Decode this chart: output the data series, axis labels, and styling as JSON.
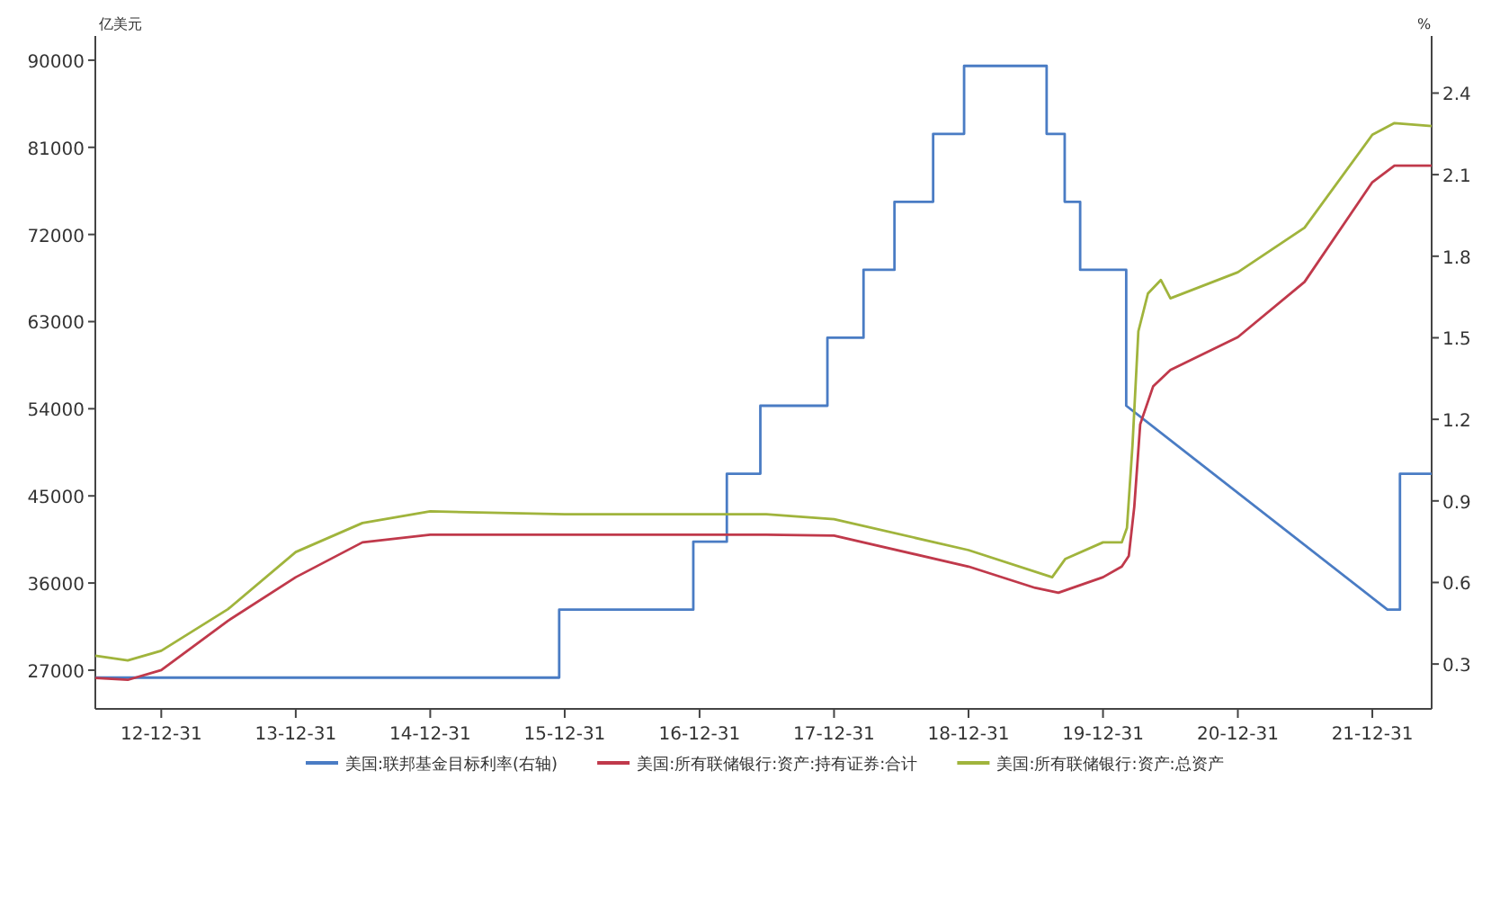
{
  "chart_data": {
    "type": "line",
    "ylabel": "亿美元",
    "y2label": "%",
    "legend": "bottom",
    "xlim": [
      "2012-07-05",
      "2022-06-10"
    ],
    "xticks": [
      {
        "value": "2012-12-31",
        "label": "12-12-31"
      },
      {
        "value": "2013-12-31",
        "label": "13-12-31"
      },
      {
        "value": "2014-12-31",
        "label": "14-12-31"
      },
      {
        "value": "2015-12-31",
        "label": "15-12-31"
      },
      {
        "value": "2016-12-31",
        "label": "16-12-31"
      },
      {
        "value": "2017-12-31",
        "label": "17-12-31"
      },
      {
        "value": "2018-12-31",
        "label": "18-12-31"
      },
      {
        "value": "2019-12-31",
        "label": "19-12-31"
      },
      {
        "value": "2020-12-31",
        "label": "20-12-31"
      },
      {
        "value": "2021-12-31",
        "label": "21-12-31"
      }
    ],
    "ylim": [
      23000,
      92500
    ],
    "yticks": [
      27000,
      36000,
      45000,
      54000,
      63000,
      72000,
      81000,
      90000
    ],
    "y2lim": [
      0.135,
      2.61
    ],
    "y2ticks": [
      0.3,
      0.6,
      0.9,
      1.2,
      1.5,
      1.8,
      2.1,
      2.4
    ],
    "series": [
      {
        "name": "美国:联邦基金目标利率(右轴)",
        "color": "#4a7cc4",
        "axis": "y2",
        "x": [
          "2012-07-05",
          "2015-12-16",
          "2015-12-16",
          "2016-12-14",
          "2016-12-14",
          "2017-03-15",
          "2017-03-15",
          "2017-06-14",
          "2017-06-14",
          "2017-12-13",
          "2017-12-13",
          "2018-03-21",
          "2018-03-21",
          "2018-06-13",
          "2018-06-13",
          "2018-09-26",
          "2018-09-26",
          "2018-12-19",
          "2018-12-19",
          "2019-07-31",
          "2019-07-31",
          "2019-09-18",
          "2019-09-18",
          "2019-10-30",
          "2019-10-30",
          "2020-03-03",
          "2020-03-03",
          "2022-02-10",
          "2022-03-16",
          "2022-03-16",
          "2022-06-10"
        ],
        "values": [
          0.25,
          0.25,
          0.5,
          0.5,
          0.75,
          0.75,
          1.0,
          1.0,
          1.25,
          1.25,
          1.5,
          1.5,
          1.75,
          1.75,
          2.0,
          2.0,
          2.25,
          2.25,
          2.5,
          2.5,
          2.25,
          2.25,
          2.0,
          2.0,
          1.75,
          1.75,
          1.25,
          0.5,
          0.5,
          1.0,
          1.0
        ]
      },
      {
        "name": "美国:所有联储银行:资产:持有证券:合计",
        "color": "#c0394b",
        "x": [
          "2012-07-05",
          "2012-10-01",
          "2012-12-31",
          "2013-06-30",
          "2013-12-31",
          "2014-06-30",
          "2014-12-31",
          "2015-12-31",
          "2016-12-31",
          "2017-06-30",
          "2017-12-31",
          "2018-12-31",
          "2019-06-30",
          "2019-09-01",
          "2019-12-31",
          "2020-02-20",
          "2020-03-10",
          "2020-03-25",
          "2020-04-10",
          "2020-05-15",
          "2020-07-01",
          "2020-12-31",
          "2021-06-30",
          "2021-12-31",
          "2022-03-01",
          "2022-06-10"
        ],
        "values": [
          26200,
          26000,
          27000,
          32100,
          36600,
          40200,
          41000,
          41000,
          41000,
          41000,
          40900,
          37700,
          35500,
          35000,
          36600,
          37700,
          38800,
          43900,
          52400,
          56300,
          58000,
          61400,
          67100,
          77400,
          79100,
          79100
        ]
      },
      {
        "name": "美国:所有联储银行:资产:总资产",
        "color": "#a0b43c",
        "x": [
          "2012-07-05",
          "2012-10-01",
          "2012-12-31",
          "2013-06-30",
          "2013-12-31",
          "2014-06-30",
          "2014-12-31",
          "2015-12-31",
          "2016-12-31",
          "2017-06-30",
          "2017-12-31",
          "2018-12-31",
          "2019-08-15",
          "2019-09-20",
          "2019-12-31",
          "2020-02-20",
          "2020-03-05",
          "2020-03-20",
          "2020-04-05",
          "2020-05-01",
          "2020-06-05",
          "2020-07-01",
          "2020-12-31",
          "2021-06-30",
          "2021-12-31",
          "2022-03-01",
          "2022-06-10"
        ],
        "values": [
          28500,
          28000,
          29000,
          33300,
          39200,
          42200,
          43400,
          43100,
          43100,
          43100,
          42600,
          39400,
          36600,
          38500,
          40200,
          40200,
          41700,
          50200,
          62000,
          65900,
          67300,
          65400,
          68100,
          72700,
          82300,
          83500,
          83200
        ]
      }
    ]
  }
}
